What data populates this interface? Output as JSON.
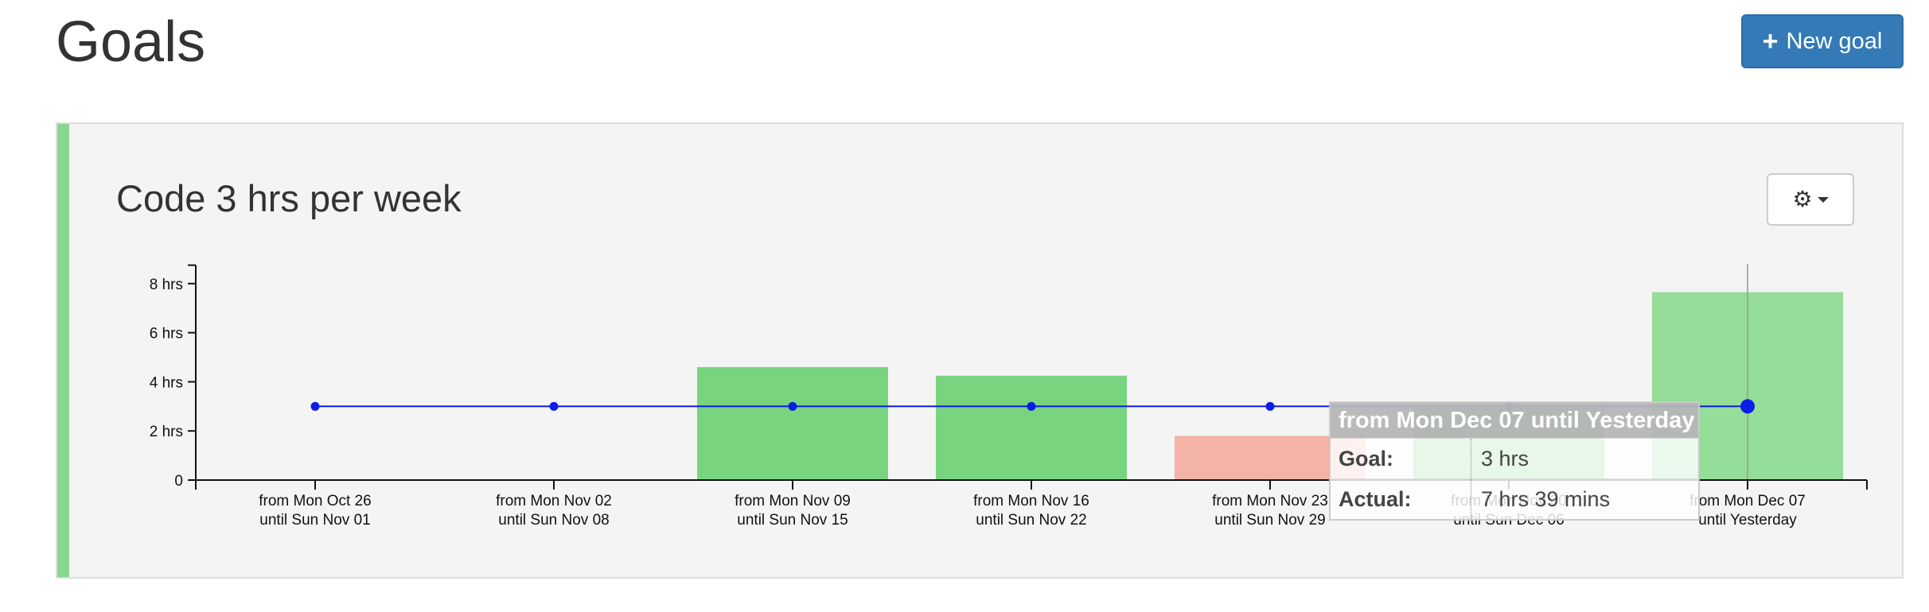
{
  "header": {
    "title": "Goals",
    "new_goal_label": "New goal"
  },
  "goal": {
    "title": "Code 3 hrs per week",
    "settings_icon": "gear-icon"
  },
  "colors": {
    "met": "#78d47f",
    "met_faded": "#95dd99",
    "missed": "#f3b4a5",
    "goal_line": "#0a1ee6",
    "accent": "#89d594",
    "button": "#337ab7"
  },
  "chart_data": {
    "type": "bar",
    "categories": [
      [
        "from Mon Oct 26",
        "until Sun Nov 01"
      ],
      [
        "from Mon Nov 02",
        "until Sun Nov 08"
      ],
      [
        "from Mon Nov 09",
        "until Sun Nov 15"
      ],
      [
        "from Mon Nov 16",
        "until Sun Nov 22"
      ],
      [
        "from Mon Nov 23",
        "until Sun Nov 29"
      ],
      [
        "from Mon Nov 30",
        "until Sun Dec 06"
      ],
      [
        "from Mon Dec 07",
        "until Yesterday"
      ]
    ],
    "series": [
      {
        "type": "bar",
        "values": [
          0,
          0,
          4.6,
          4.25,
          1.8,
          3.05,
          7.65
        ],
        "status": [
          "none",
          "none",
          "met",
          "met",
          "missed",
          "met",
          "met"
        ]
      },
      {
        "type": "line",
        "values": [
          3,
          3,
          3,
          3,
          3,
          3,
          3
        ]
      }
    ],
    "yticks": [
      0,
      2,
      4,
      6,
      8
    ],
    "ytick_labels": [
      "0",
      "2 hrs",
      "4 hrs",
      "6 hrs",
      "8 hrs"
    ],
    "ylim": [
      0,
      8.75
    ],
    "hover_index": 6
  },
  "tooltip": {
    "title": "from Mon Dec 07 until Yesterday",
    "goal_label": "Goal:",
    "goal_value": "3 hrs",
    "actual_label": "Actual:",
    "actual_value": "7 hrs 39 mins"
  }
}
